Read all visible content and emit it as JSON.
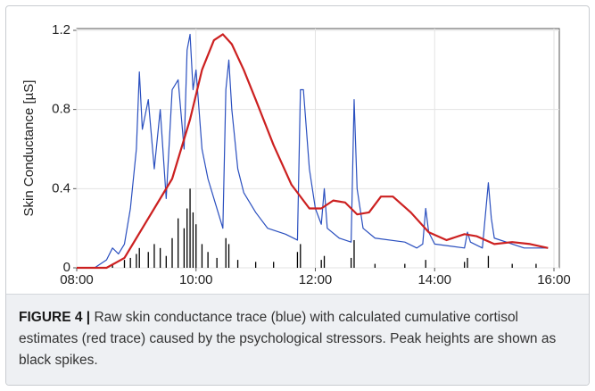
{
  "chart_data": {
    "type": "line",
    "ylabel": "Skin Conductance [µS]",
    "xlim": [
      8,
      16
    ],
    "xticks": [
      {
        "value": 8,
        "label": "08:00"
      },
      {
        "value": 10,
        "label": "10:00"
      },
      {
        "value": 12,
        "label": "12:00"
      },
      {
        "value": 14,
        "label": "14:00"
      },
      {
        "value": 16,
        "label": "16:00"
      }
    ],
    "ylim": [
      0,
      1.2
    ],
    "yticks": [
      0,
      0.4,
      0.8,
      1.2
    ],
    "grid": true,
    "series": [
      {
        "color": "#2a4fbf",
        "kind": "line",
        "x": [
          8.0,
          8.3,
          8.5,
          8.6,
          8.7,
          8.8,
          8.9,
          9.0,
          9.05,
          9.1,
          9.2,
          9.3,
          9.4,
          9.5,
          9.6,
          9.7,
          9.8,
          9.85,
          9.9,
          9.95,
          10.0,
          10.1,
          10.2,
          10.3,
          10.4,
          10.45,
          10.5,
          10.55,
          10.6,
          10.7,
          10.8,
          11.0,
          11.2,
          11.5,
          11.7,
          11.75,
          11.8,
          11.9,
          12.0,
          12.1,
          12.15,
          12.2,
          12.4,
          12.6,
          12.65,
          12.7,
          12.8,
          13.0,
          13.5,
          13.7,
          13.8,
          13.85,
          13.9,
          14.0,
          14.5,
          14.55,
          14.6,
          14.8,
          14.9,
          14.95,
          15.0,
          15.5,
          15.9
        ],
        "values": [
          0.0,
          0.0,
          0.04,
          0.1,
          0.07,
          0.12,
          0.3,
          0.6,
          0.99,
          0.7,
          0.85,
          0.5,
          0.8,
          0.35,
          0.9,
          0.95,
          0.6,
          1.1,
          1.18,
          0.9,
          1.0,
          0.6,
          0.45,
          0.35,
          0.25,
          0.2,
          0.9,
          1.05,
          0.8,
          0.5,
          0.38,
          0.28,
          0.2,
          0.17,
          0.14,
          0.9,
          0.9,
          0.5,
          0.3,
          0.22,
          0.4,
          0.2,
          0.15,
          0.13,
          0.85,
          0.4,
          0.2,
          0.15,
          0.13,
          0.1,
          0.12,
          0.3,
          0.18,
          0.12,
          0.1,
          0.18,
          0.13,
          0.1,
          0.43,
          0.25,
          0.15,
          0.1,
          0.1
        ]
      },
      {
        "color": "#cc2020",
        "kind": "line",
        "x": [
          8.0,
          8.5,
          8.8,
          9.0,
          9.3,
          9.6,
          9.9,
          10.1,
          10.3,
          10.45,
          10.6,
          10.8,
          11.0,
          11.3,
          11.6,
          11.9,
          12.1,
          12.3,
          12.5,
          12.7,
          12.9,
          13.1,
          13.3,
          13.6,
          13.9,
          14.2,
          14.5,
          14.7,
          15.0,
          15.3,
          15.6,
          15.9
        ],
        "values": [
          0,
          0,
          0.05,
          0.15,
          0.3,
          0.45,
          0.75,
          1.0,
          1.15,
          1.18,
          1.13,
          1.0,
          0.85,
          0.62,
          0.42,
          0.3,
          0.3,
          0.34,
          0.33,
          0.27,
          0.28,
          0.36,
          0.36,
          0.28,
          0.18,
          0.14,
          0.17,
          0.16,
          0.12,
          0.13,
          0.12,
          0.1
        ]
      },
      {
        "color": "#000000",
        "kind": "spikes",
        "x": [
          8.6,
          8.8,
          8.9,
          9.0,
          9.05,
          9.2,
          9.3,
          9.4,
          9.5,
          9.6,
          9.7,
          9.8,
          9.85,
          9.9,
          9.95,
          10.0,
          10.1,
          10.2,
          10.35,
          10.5,
          10.55,
          10.7,
          11.0,
          11.3,
          11.7,
          11.75,
          12.1,
          12.15,
          12.6,
          12.65,
          13.0,
          13.5,
          13.85,
          14.5,
          14.55,
          14.9,
          15.3,
          15.7
        ],
        "values": [
          0.02,
          0.04,
          0.05,
          0.07,
          0.1,
          0.08,
          0.12,
          0.1,
          0.06,
          0.15,
          0.25,
          0.2,
          0.3,
          0.4,
          0.28,
          0.22,
          0.12,
          0.08,
          0.05,
          0.15,
          0.12,
          0.04,
          0.03,
          0.03,
          0.08,
          0.12,
          0.04,
          0.06,
          0.05,
          0.14,
          0.02,
          0.02,
          0.04,
          0.03,
          0.05,
          0.06,
          0.02,
          0.02
        ]
      }
    ]
  },
  "caption": {
    "label": "FIGURE 4 |",
    "text": "Raw skin conductance trace (blue) with calculated cumulative cortisol estimates (red trace) caused by the psychological stressors. Peak heights are shown as black spikes."
  }
}
